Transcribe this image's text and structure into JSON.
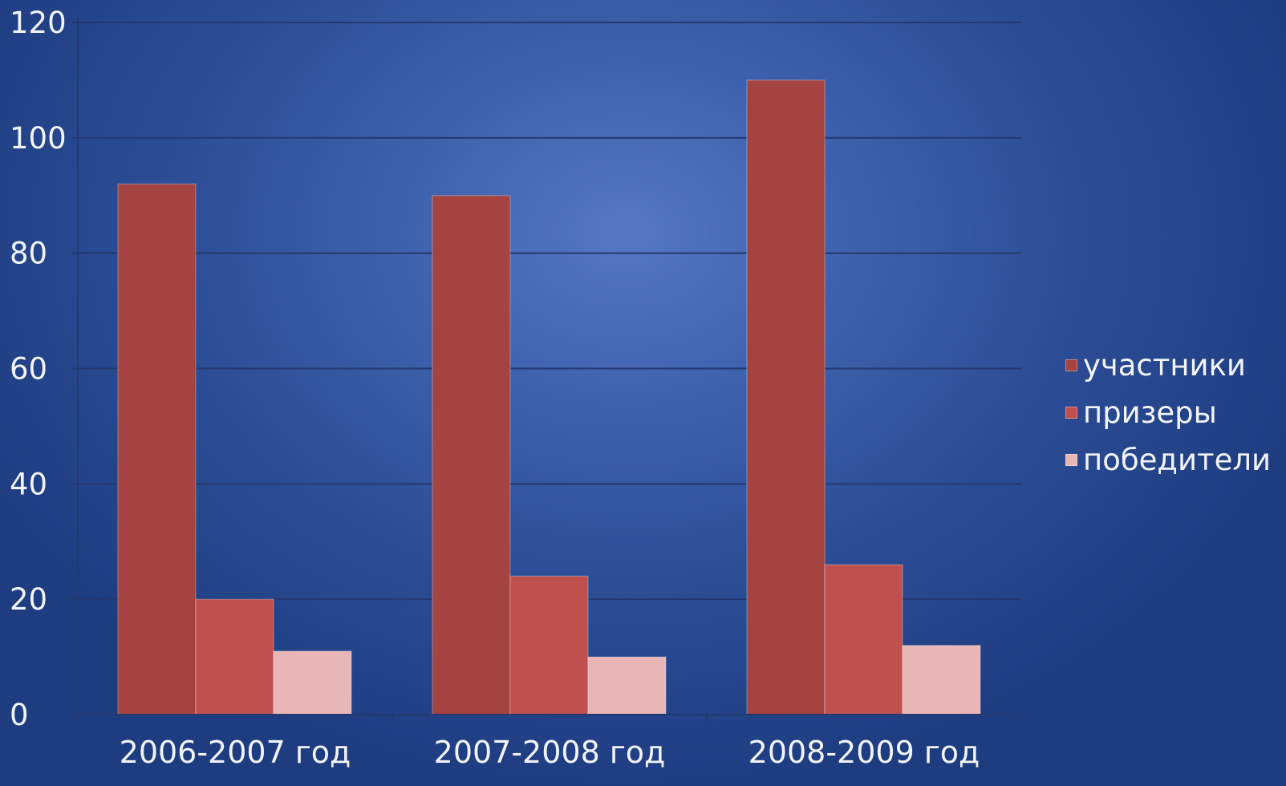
{
  "chart_data": {
    "type": "bar",
    "categories": [
      "2006-2007 год",
      "2007-2008 год",
      "2008-2009 год"
    ],
    "series": [
      {
        "name": "участники",
        "values": [
          92,
          90,
          110
        ],
        "color": "#a4433f"
      },
      {
        "name": "призеры",
        "values": [
          20,
          24,
          26
        ],
        "color": "#c0504d"
      },
      {
        "name": "победители",
        "values": [
          11,
          10,
          12
        ],
        "color": "#e8b6b6"
      }
    ],
    "ylim": [
      0,
      120
    ],
    "yticks": [
      0,
      20,
      40,
      60,
      80,
      100,
      120
    ],
    "grid": true,
    "legend_position": "right",
    "background_color": "#3f62ae",
    "gridline_color": "#24396f",
    "text_color": "#f2f4fa"
  }
}
